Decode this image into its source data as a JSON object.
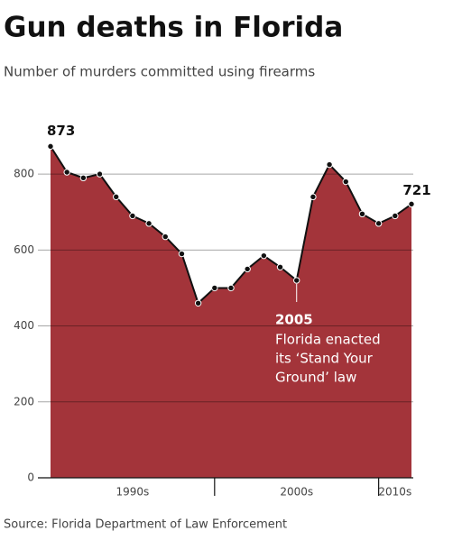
{
  "chart_data": {
    "type": "area",
    "title": "Gun deaths in Florida",
    "subtitle": "Number of murders committed using firearms",
    "x": [
      1990,
      1991,
      1992,
      1993,
      1994,
      1995,
      1996,
      1997,
      1998,
      1999,
      2000,
      2001,
      2002,
      2003,
      2004,
      2005,
      2006,
      2007,
      2008,
      2009,
      2010,
      2011,
      2012
    ],
    "values": [
      873,
      805,
      790,
      800,
      740,
      690,
      670,
      635,
      590,
      460,
      500,
      500,
      550,
      585,
      555,
      520,
      740,
      825,
      780,
      695,
      670,
      690,
      721
    ],
    "color": "#a3343a",
    "xlim": [
      1990,
      2012
    ],
    "xticks": [
      {
        "value": 1995,
        "label": "1990s"
      },
      {
        "value": 2005,
        "label": "2000s"
      },
      {
        "value": 2011,
        "label": "2010s"
      }
    ],
    "decade_boundaries": [
      2000,
      2010
    ],
    "ylim": [
      0,
      900
    ],
    "yticks": [
      0,
      200,
      400,
      600,
      800
    ],
    "grid": true,
    "annotation": {
      "x": 2005,
      "title": "2005",
      "lines": [
        "Florida enacted",
        "its ‘Stand Your",
        "Ground’ law"
      ]
    },
    "source": "Source: Florida Department of Law Enforcement"
  }
}
